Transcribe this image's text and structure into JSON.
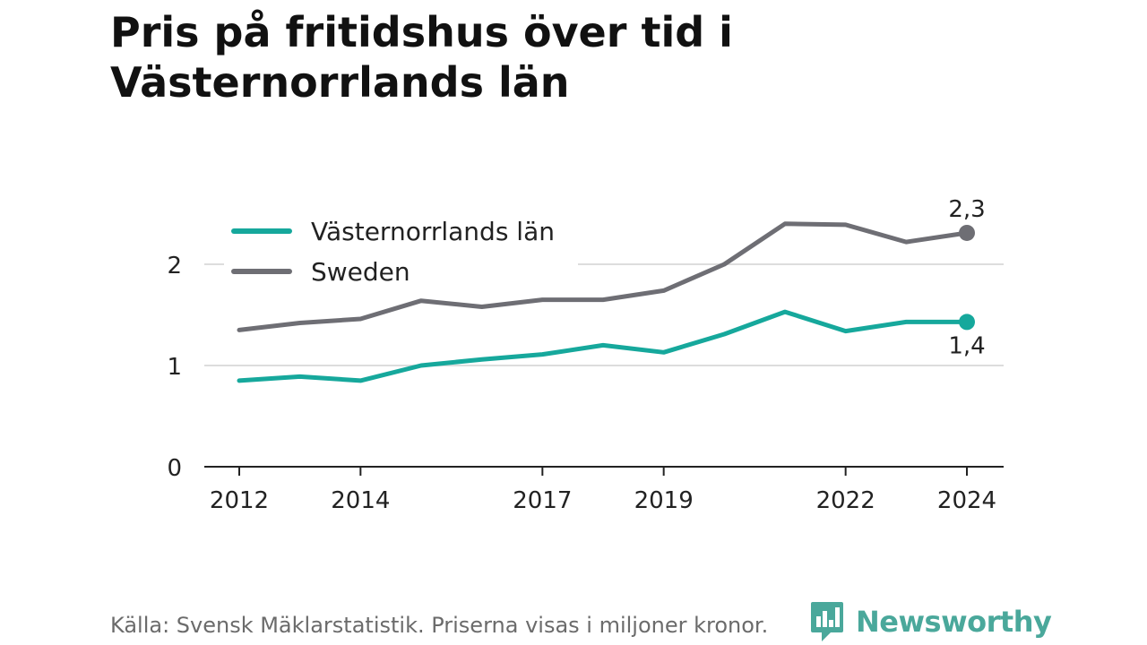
{
  "title_line1": "Pris på fritidshus över tid i",
  "title_line2": "Västernorrlands län",
  "source": "Källa: Svensk Mäklarstatistik. Priserna visas i miljoner kronor.",
  "brand": {
    "name": "Newsworthy",
    "logo_icon": "bar-chart-speech-bubble-icon",
    "color": "#4aa89b"
  },
  "chart_data": {
    "type": "line",
    "title": "Pris på fritidshus över tid i Västernorrlands län",
    "xlabel": "",
    "ylabel": "",
    "x": [
      2012,
      2013,
      2014,
      2015,
      2016,
      2017,
      2018,
      2019,
      2020,
      2021,
      2022,
      2023,
      2024
    ],
    "xticks": [
      "2012",
      "2014",
      "2017",
      "2019",
      "2022",
      "2024"
    ],
    "yticks": [
      "0",
      "1",
      "2"
    ],
    "ylim": [
      0,
      2.6
    ],
    "grid": true,
    "legend": "top-left",
    "series": [
      {
        "name": "Västernorrlands län",
        "color": "#16a89c",
        "values": [
          0.85,
          0.89,
          0.85,
          1.0,
          1.06,
          1.11,
          1.2,
          1.13,
          1.31,
          1.53,
          1.34,
          1.43,
          1.43
        ],
        "end_label": "1,4"
      },
      {
        "name": "Sweden",
        "color": "#6e6e74",
        "values": [
          1.35,
          1.42,
          1.46,
          1.64,
          1.58,
          1.65,
          1.65,
          1.74,
          2.0,
          2.4,
          2.39,
          2.22,
          2.31
        ],
        "end_label": "2,3"
      }
    ]
  }
}
